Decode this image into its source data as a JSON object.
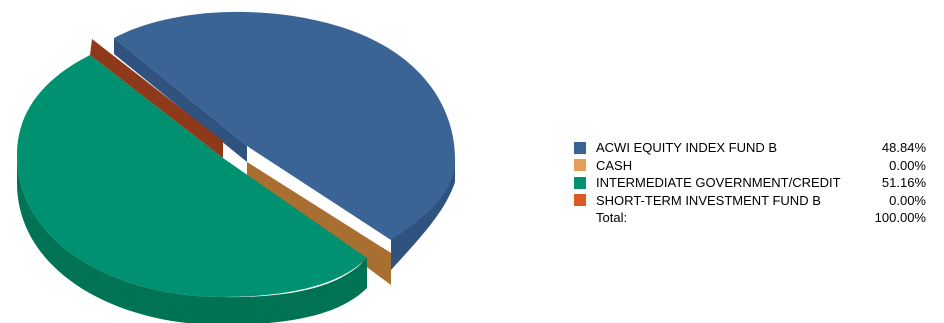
{
  "chart_data": {
    "type": "pie",
    "three_d": true,
    "legend_position": "right",
    "slices": [
      {
        "label": "ACWI EQUITY INDEX FUND B",
        "value": 48.84,
        "display": "48.84%",
        "color": "#3A6396",
        "side_color": "#2F527E"
      },
      {
        "label": "CASH",
        "value": 0.0,
        "display": "0.00%",
        "color": "#E59F5A",
        "side_color": "#A86F30"
      },
      {
        "label": "INTERMEDIATE GOVERNMENT/CREDIT",
        "value": 51.16,
        "display": "51.16%",
        "color": "#009270",
        "side_color": "#007355"
      },
      {
        "label": "SHORT-TERM INVESTMENT FUND B",
        "value": 0.0,
        "display": "0.00%",
        "color": "#DC5A28",
        "side_color": "#8E3A1A"
      }
    ],
    "total": {
      "label": "Total:",
      "display": "100.00%"
    }
  }
}
